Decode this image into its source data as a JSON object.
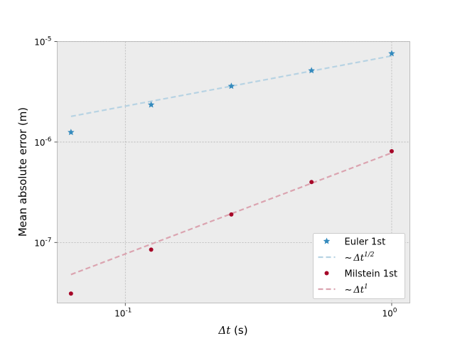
{
  "chart_data": {
    "type": "scatter",
    "xlabel": "Δt (s)",
    "ylabel": "Mean absolute error (m)",
    "xscale": "log",
    "yscale": "log",
    "xlim": [
      0.0555,
      1.17
    ],
    "ylim": [
      2.5e-08,
      1e-05
    ],
    "grid": true,
    "legend_position": "lower-right",
    "x_ticks": [
      {
        "value": 0.1,
        "base": "10",
        "exp": "-1"
      },
      {
        "value": 1,
        "base": "10",
        "exp": "0"
      }
    ],
    "y_ticks": [
      {
        "value": 1e-07,
        "base": "10",
        "exp": "-7"
      },
      {
        "value": 1e-06,
        "base": "10",
        "exp": "-6"
      },
      {
        "value": 1e-05,
        "base": "10",
        "exp": "-5"
      }
    ],
    "series": [
      {
        "name": "Euler 1st",
        "kind": "scatter",
        "marker": "star",
        "color": "#348abd",
        "x": [
          0.0625,
          0.125,
          0.25,
          0.5,
          1.0
        ],
        "y": [
          1.25e-06,
          2.35e-06,
          3.6e-06,
          5.15e-06,
          7.6e-06
        ]
      },
      {
        "name": "~Δt^{1/2}",
        "legend_label": "$\\sim\\Delta t^{1/2}$",
        "kind": "line",
        "dashed": true,
        "color": "#b7d3e3",
        "x": [
          0.0625,
          1.0
        ],
        "y": [
          1.8e-06,
          7.2e-06
        ]
      },
      {
        "name": "Milstein 1st",
        "kind": "scatter",
        "marker": "circle",
        "color": "#a60628",
        "x": [
          0.0625,
          0.125,
          0.25,
          0.5,
          1.0
        ],
        "y": [
          3.1e-08,
          8.5e-08,
          1.9e-07,
          4e-07,
          8.1e-07
        ]
      },
      {
        "name": "~Δt^{1}",
        "legend_label": "$\\sim\\Delta t^{1}$",
        "kind": "line",
        "dashed": true,
        "color": "#dba4b0",
        "x": [
          0.0625,
          1.0
        ],
        "y": [
          4.8e-08,
          7.8e-07
        ]
      }
    ]
  }
}
